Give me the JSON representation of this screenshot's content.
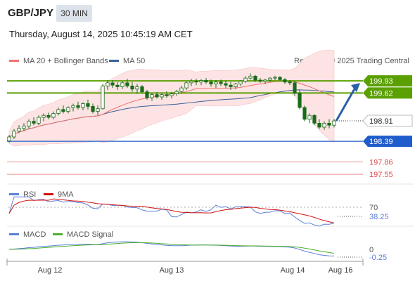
{
  "header": {
    "symbol": "GBP/JPY",
    "timeframe": "30 MIN",
    "datetime": "Thursday, August 14, 2025 10:45:19 AM CET"
  },
  "legend": {
    "ma20": "MA 20 + Bollinger Bands",
    "ma50": "MA 50",
    "copyright": "Research © 2025 Trading Central",
    "rsi": "RSI",
    "ma9": "9MA",
    "macd": "MACD",
    "macd_signal": "MACD Signal"
  },
  "colors": {
    "ma20": "#f07070",
    "ma50": "#3a5f9a",
    "bollinger_fill": "#fde3e3",
    "candle": "#1a6b1a",
    "resistance": "#5aa000",
    "support": "#1f5ccc",
    "target": "#e04a4a",
    "rsi": "#5b7fd6",
    "macd": "#5b7fd6",
    "macd_signal": "#4caf2a",
    "arrow": "#2a5ea8"
  },
  "chart_data": {
    "type": "candlestick",
    "y_range": [
      197.3,
      200.2
    ],
    "x_labels": [
      "Aug 12",
      "Aug 13",
      "Aug 14",
      "Aug 16"
    ],
    "price_levels": [
      {
        "value": "199.93",
        "kind": "resistance"
      },
      {
        "value": "199.62",
        "kind": "resistance"
      },
      {
        "value": "198.91",
        "kind": "current"
      },
      {
        "value": "198.39",
        "kind": "support"
      },
      {
        "value": "197.86",
        "kind": "target"
      },
      {
        "value": "197.55",
        "kind": "target"
      }
    ],
    "candles": [
      [
        198.4,
        198.55,
        198.35,
        198.5
      ],
      [
        198.5,
        198.7,
        198.45,
        198.65
      ],
      [
        198.65,
        198.8,
        198.6,
        198.72
      ],
      [
        198.72,
        198.85,
        198.65,
        198.78
      ],
      [
        198.78,
        198.95,
        198.7,
        198.9
      ],
      [
        198.9,
        199.0,
        198.8,
        198.85
      ],
      [
        198.85,
        199.05,
        198.8,
        199.0
      ],
      [
        199.0,
        199.1,
        198.9,
        199.05
      ],
      [
        199.05,
        199.12,
        198.95,
        199.0
      ],
      [
        199.0,
        199.15,
        198.95,
        199.1
      ],
      [
        199.1,
        199.25,
        199.05,
        199.2
      ],
      [
        199.2,
        199.3,
        199.1,
        199.15
      ],
      [
        199.15,
        199.28,
        199.1,
        199.25
      ],
      [
        199.25,
        199.35,
        199.15,
        199.3
      ],
      [
        199.3,
        199.4,
        199.2,
        199.25
      ],
      [
        199.25,
        199.38,
        199.18,
        199.35
      ],
      [
        199.35,
        199.45,
        199.2,
        199.28
      ],
      [
        199.28,
        199.35,
        199.1,
        199.15
      ],
      [
        199.15,
        199.3,
        199.05,
        199.22
      ],
      [
        199.22,
        199.85,
        199.2,
        199.8
      ],
      [
        199.8,
        199.95,
        199.7,
        199.88
      ],
      [
        199.88,
        199.95,
        199.75,
        199.82
      ],
      [
        199.82,
        199.9,
        199.7,
        199.78
      ],
      [
        199.78,
        199.92,
        199.72,
        199.88
      ],
      [
        199.88,
        199.98,
        199.75,
        199.8
      ],
      [
        199.8,
        199.9,
        199.65,
        199.72
      ],
      [
        199.72,
        199.85,
        199.6,
        199.78
      ],
      [
        199.78,
        199.82,
        199.6,
        199.65
      ],
      [
        199.65,
        199.7,
        199.45,
        199.5
      ],
      [
        199.5,
        199.62,
        199.42,
        199.58
      ],
      [
        199.58,
        199.65,
        199.48,
        199.52
      ],
      [
        199.52,
        199.62,
        199.45,
        199.58
      ],
      [
        199.58,
        199.66,
        199.5,
        199.55
      ],
      [
        199.55,
        199.65,
        199.48,
        199.6
      ],
      [
        199.6,
        199.7,
        199.55,
        199.66
      ],
      [
        199.66,
        199.8,
        199.6,
        199.75
      ],
      [
        199.75,
        199.92,
        199.7,
        199.88
      ],
      [
        199.88,
        199.98,
        199.8,
        199.92
      ],
      [
        199.92,
        199.98,
        199.82,
        199.9
      ],
      [
        199.9,
        199.98,
        199.82,
        199.94
      ],
      [
        199.94,
        200.0,
        199.85,
        199.9
      ],
      [
        199.9,
        199.96,
        199.78,
        199.85
      ],
      [
        199.85,
        199.95,
        199.75,
        199.9
      ],
      [
        199.9,
        199.96,
        199.8,
        199.86
      ],
      [
        199.86,
        199.94,
        199.74,
        199.82
      ],
      [
        199.82,
        199.9,
        199.7,
        199.78
      ],
      [
        199.78,
        199.88,
        199.72,
        199.85
      ],
      [
        199.85,
        199.95,
        199.8,
        199.92
      ],
      [
        199.92,
        200.05,
        199.88,
        200.0
      ],
      [
        200.0,
        200.12,
        199.96,
        200.05
      ],
      [
        200.05,
        200.08,
        199.9,
        199.95
      ],
      [
        199.95,
        200.0,
        199.88,
        199.92
      ],
      [
        199.92,
        199.98,
        199.85,
        199.95
      ],
      [
        199.95,
        200.02,
        199.9,
        200.0
      ],
      [
        200.0,
        200.06,
        199.95,
        200.02
      ],
      [
        200.02,
        200.05,
        199.92,
        199.96
      ],
      [
        199.96,
        200.0,
        199.85,
        199.9
      ],
      [
        199.9,
        199.95,
        199.82,
        199.88
      ],
      [
        199.88,
        199.92,
        199.55,
        199.62
      ],
      [
        199.62,
        199.7,
        199.2,
        199.25
      ],
      [
        199.25,
        199.3,
        198.9,
        198.95
      ],
      [
        198.95,
        199.1,
        198.85,
        199.05
      ],
      [
        199.05,
        199.08,
        198.8,
        198.85
      ],
      [
        198.85,
        198.95,
        198.7,
        198.75
      ],
      [
        198.75,
        198.9,
        198.68,
        198.85
      ],
      [
        198.85,
        198.95,
        198.72,
        198.8
      ],
      [
        198.8,
        198.96,
        198.74,
        198.91
      ]
    ],
    "rsi_label": "70",
    "rsi_value": "38.25",
    "macd_label": "0",
    "macd_value": "-0.25"
  }
}
